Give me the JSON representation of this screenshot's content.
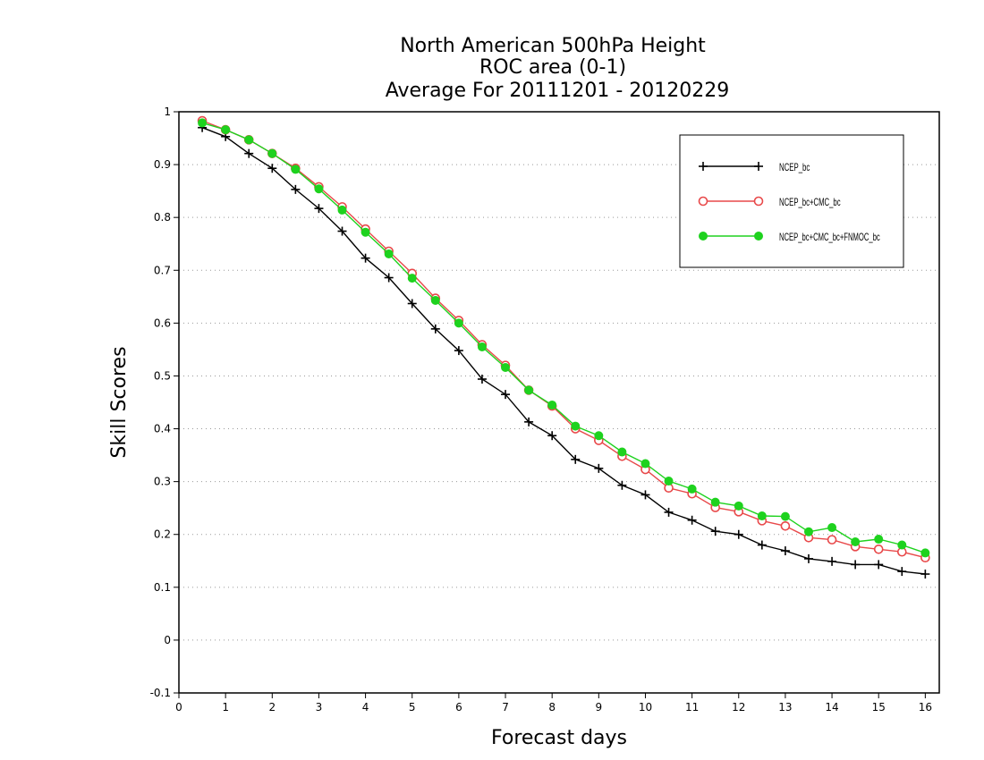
{
  "chart_data": {
    "type": "line",
    "title": [
      "North American 500hPa Height",
      "ROC area (0-1)",
      "Average For 20111201 - 20120229"
    ],
    "xlabel": "Forecast days",
    "ylabel": "Skill Scores",
    "xlim": [
      0,
      16.3
    ],
    "ylim": [
      -0.1,
      1
    ],
    "xticks": [
      0,
      1,
      2,
      3,
      4,
      5,
      6,
      7,
      8,
      9,
      10,
      11,
      12,
      13,
      14,
      15,
      16
    ],
    "yticks": [
      -0.1,
      0,
      0.1,
      0.2,
      0.3,
      0.4,
      0.5,
      0.6,
      0.7,
      0.8,
      0.9,
      1
    ],
    "ytick_labels": [
      "-0.1",
      "0",
      "0.1",
      "0.2",
      "0.3",
      "0.4",
      "0.5",
      "0.6",
      "0.7",
      "0.8",
      "0.9",
      "1"
    ],
    "grid": "horizontal dotted",
    "legend_position": "top-right",
    "x": [
      0.5,
      1,
      1.5,
      2,
      2.5,
      3,
      3.5,
      4,
      4.5,
      5,
      5.5,
      6,
      6.5,
      7,
      7.5,
      8,
      8.5,
      9,
      9.5,
      10,
      10.5,
      11,
      11.5,
      12,
      12.5,
      13,
      13.5,
      14,
      14.5,
      15,
      15.5,
      16
    ],
    "series": [
      {
        "name": "NCEP_bc",
        "color": "#000000",
        "marker": "plus",
        "values": [
          0.97,
          0.953,
          0.921,
          0.893,
          0.853,
          0.817,
          0.774,
          0.723,
          0.686,
          0.637,
          0.589,
          0.548,
          0.494,
          0.465,
          0.413,
          0.387,
          0.342,
          0.325,
          0.293,
          0.275,
          0.242,
          0.227,
          0.206,
          0.2,
          0.18,
          0.169,
          0.154,
          0.149,
          0.143,
          0.143,
          0.13,
          0.125
        ]
      },
      {
        "name": "NCEP_bc+CMC_bc",
        "color": "#e8494a",
        "marker": "open-circle",
        "values": [
          0.983,
          0.966,
          0.947,
          0.921,
          0.893,
          0.858,
          0.82,
          0.778,
          0.736,
          0.694,
          0.647,
          0.605,
          0.559,
          0.52,
          0.473,
          0.443,
          0.4,
          0.378,
          0.348,
          0.323,
          0.288,
          0.277,
          0.251,
          0.243,
          0.226,
          0.216,
          0.194,
          0.19,
          0.177,
          0.172,
          0.167,
          0.156
        ]
      },
      {
        "name": "NCEP_bc+CMC_bc+FNMOC_bc",
        "color": "#1ed21e",
        "marker": "filled-circle",
        "values": [
          0.979,
          0.966,
          0.947,
          0.921,
          0.891,
          0.854,
          0.814,
          0.772,
          0.731,
          0.685,
          0.643,
          0.6,
          0.555,
          0.516,
          0.473,
          0.445,
          0.405,
          0.387,
          0.356,
          0.334,
          0.301,
          0.286,
          0.261,
          0.254,
          0.235,
          0.234,
          0.205,
          0.213,
          0.186,
          0.191,
          0.18,
          0.165
        ]
      }
    ]
  }
}
